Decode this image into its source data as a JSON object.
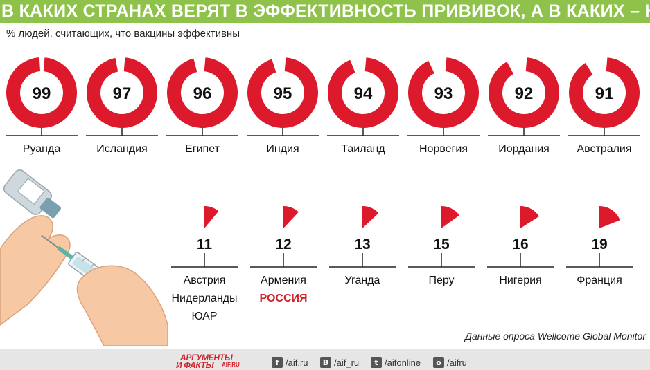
{
  "header": {
    "title": "В КАКИХ СТРАНАХ ВЕРЯТ В ЭФФЕКТИВНОСТЬ ПРИВИВОК, А В КАКИХ – НЕТ",
    "subtitle": "% людей, считающих, что вакцины эффективны"
  },
  "chart_data": {
    "type": "pie",
    "unit": "%",
    "high": [
      {
        "value": 99,
        "countries": [
          "Руанда"
        ]
      },
      {
        "value": 97,
        "countries": [
          "Исландия"
        ]
      },
      {
        "value": 96,
        "countries": [
          "Египет"
        ]
      },
      {
        "value": 95,
        "countries": [
          "Индия"
        ]
      },
      {
        "value": 94,
        "countries": [
          "Таиланд"
        ]
      },
      {
        "value": 93,
        "countries": [
          "Норвегия"
        ]
      },
      {
        "value": 92,
        "countries": [
          "Иордания"
        ]
      },
      {
        "value": 91,
        "countries": [
          "Австралия"
        ]
      }
    ],
    "low": [
      {
        "value": 11,
        "countries": [
          "Австрия",
          "Нидерланды",
          "ЮАР"
        ]
      },
      {
        "value": 12,
        "countries": [
          "Армения",
          "РОССИЯ"
        ]
      },
      {
        "value": 13,
        "countries": [
          "Уганда"
        ]
      },
      {
        "value": 15,
        "countries": [
          "Перу"
        ]
      },
      {
        "value": 16,
        "countries": [
          "Нигерия"
        ]
      },
      {
        "value": 19,
        "countries": [
          "Франция"
        ]
      }
    ],
    "highlight_country": "РОССИЯ"
  },
  "source": "Данные опроса Wellcome Global Monitor",
  "footer": {
    "logo": [
      "АРГУМЕНТЫ",
      "И ФАКТЫ",
      "AIF.RU"
    ],
    "social": [
      {
        "icon": "facebook-icon",
        "glyph": "f",
        "label": "/aif.ru"
      },
      {
        "icon": "vk-icon",
        "glyph": "B",
        "label": "/aif_ru"
      },
      {
        "icon": "twitter-icon",
        "glyph": "t",
        "label": "/aifonline"
      },
      {
        "icon": "odnoklassniki-icon",
        "glyph": "o",
        "label": "/aifru"
      }
    ]
  },
  "colors": {
    "title_bar": "#8ec24a",
    "donut": "#dd1a2b",
    "highlight": "#d3222a",
    "footer": "#e6e6e6"
  }
}
